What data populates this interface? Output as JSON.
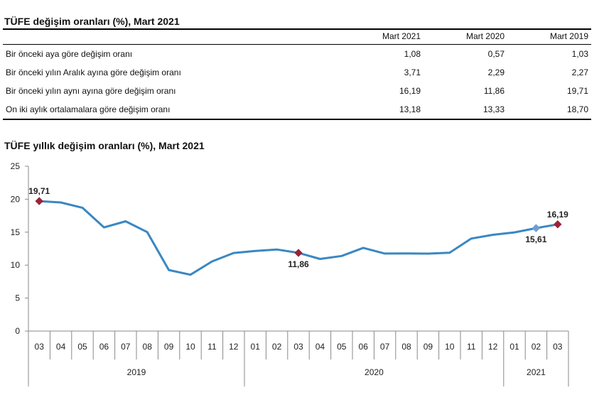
{
  "table": {
    "title": "TÜFE değişim oranları (%), Mart 2021",
    "columns": [
      "Mart 2021",
      "Mart 2020",
      "Mart 2019"
    ],
    "rows": [
      {
        "label": "Bir önceki aya göre değişim oranı",
        "values": [
          "1,08",
          "0,57",
          "1,03"
        ]
      },
      {
        "label": "Bir önceki yılın Aralık ayına göre değişim oranı",
        "values": [
          "3,71",
          "2,29",
          "2,27"
        ]
      },
      {
        "label": "Bir önceki yılın aynı ayına göre değişim oranı",
        "values": [
          "16,19",
          "11,86",
          "19,71"
        ]
      },
      {
        "label": "On iki aylık ortalamalara göre değişim oranı",
        "values": [
          "13,18",
          "13,33",
          "18,70"
        ]
      }
    ]
  },
  "chart_data": {
    "type": "line",
    "title": "TÜFE yıllık değişim oranları (%), Mart 2021",
    "ylim": [
      0,
      25
    ],
    "yticks": [
      0,
      5,
      10,
      15,
      20,
      25
    ],
    "grid": false,
    "line_color": "#3a87c2",
    "marker_color": "#9b2335",
    "categories": [
      "03",
      "04",
      "05",
      "06",
      "07",
      "08",
      "09",
      "10",
      "11",
      "12",
      "01",
      "02",
      "03",
      "04",
      "05",
      "06",
      "07",
      "08",
      "09",
      "10",
      "11",
      "12",
      "01",
      "02",
      "03"
    ],
    "year_groups": [
      {
        "label": "2019",
        "count": 10
      },
      {
        "label": "2020",
        "count": 12
      },
      {
        "label": "2021",
        "count": 3
      }
    ],
    "series": [
      {
        "values": [
          19.71,
          19.5,
          18.71,
          15.72,
          16.65,
          15.01,
          9.26,
          8.55,
          10.56,
          11.84,
          12.15,
          12.37,
          11.86,
          10.94,
          11.39,
          12.62,
          11.76,
          11.77,
          11.75,
          11.89,
          14.03,
          14.6,
          14.97,
          15.61,
          16.19
        ]
      }
    ],
    "annotations": [
      {
        "index": 0,
        "text": "19,71",
        "marker": "diamond-red",
        "position": "above"
      },
      {
        "index": 12,
        "text": "11,86",
        "marker": "diamond-red",
        "position": "below"
      },
      {
        "index": 23,
        "text": "15,61",
        "marker": "diamond-blue",
        "position": "below"
      },
      {
        "index": 24,
        "text": "16,19",
        "marker": "diamond-red",
        "position": "above"
      }
    ]
  }
}
